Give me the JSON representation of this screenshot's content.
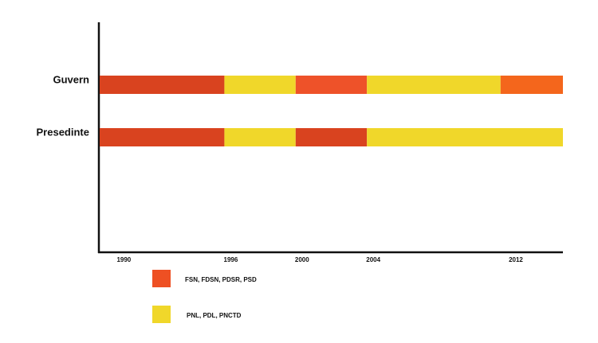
{
  "chart_data": {
    "type": "timeline",
    "rows": [
      {
        "label": "Guvern",
        "segments": [
          {
            "start": 1989,
            "end": 1996,
            "color": "#d9431f"
          },
          {
            "start": 1996,
            "end": 2000,
            "color": "#f0d72a"
          },
          {
            "start": 2000,
            "end": 2004,
            "color": "#ee5229"
          },
          {
            "start": 2004,
            "end": 2011.5,
            "color": "#f0d72a"
          },
          {
            "start": 2011.5,
            "end": 2015,
            "color": "#f4661c"
          }
        ]
      },
      {
        "label": "Presedinte",
        "segments": [
          {
            "start": 1989,
            "end": 1996,
            "color": "#d9431f"
          },
          {
            "start": 1996,
            "end": 2000,
            "color": "#f0d72a"
          },
          {
            "start": 2000,
            "end": 2004,
            "color": "#d9431f"
          },
          {
            "start": 2004,
            "end": 2015,
            "color": "#f0d72a"
          }
        ]
      }
    ],
    "xlim": [
      1989,
      2015
    ],
    "xticks": [
      1990,
      1996,
      2000,
      2004,
      2012
    ],
    "legend": [
      {
        "name": "FSN, FDSN, PDSR, PSD",
        "color": "#ee5023"
      },
      {
        "name": "PNL, PDL, PNCTD",
        "color": "#f0d72a"
      }
    ]
  }
}
